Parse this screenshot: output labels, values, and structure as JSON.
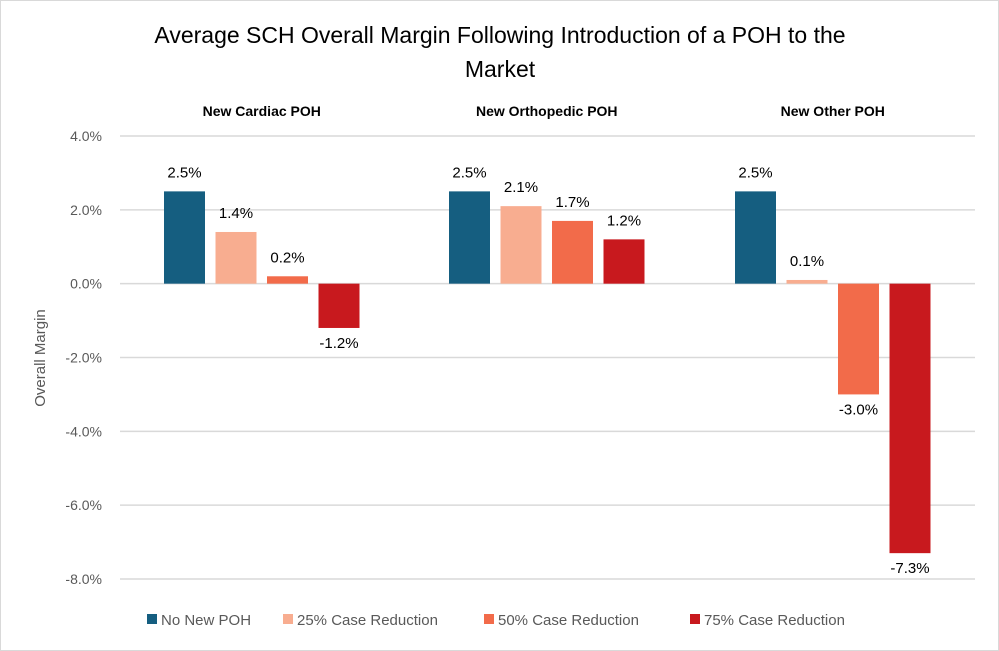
{
  "chart_data": {
    "type": "bar",
    "title": "Average SCH Overall Margin Following Introduction of a POH to the Market",
    "title_lines": [
      "Average SCH Overall Margin Following Introduction of a POH to the",
      "Market"
    ],
    "xlabel": "",
    "ylabel": "Overall Margin",
    "ylim": [
      -8.0,
      4.0
    ],
    "yticks": [
      4.0,
      2.0,
      0.0,
      -2.0,
      -4.0,
      -6.0,
      -8.0
    ],
    "ytick_labels": [
      "4.0%",
      "2.0%",
      "0.0%",
      "-2.0%",
      "-4.0%",
      "-6.0%",
      "-8.0%"
    ],
    "grid": true,
    "legend_position": "bottom",
    "categories": [
      "New Cardiac POH",
      "New Orthopedic POH",
      "New Other POH"
    ],
    "series": [
      {
        "name": "No New POH",
        "color": "#155e80",
        "values": [
          2.5,
          2.5,
          2.5
        ],
        "labels": [
          "2.5%",
          "2.5%",
          "2.5%"
        ]
      },
      {
        "name": "25% Case Reduction",
        "color": "#f8ad90",
        "values": [
          1.4,
          2.1,
          0.1
        ],
        "labels": [
          "1.4%",
          "2.1%",
          "0.1%"
        ]
      },
      {
        "name": "50% Case Reduction",
        "color": "#f26b4a",
        "values": [
          0.2,
          1.7,
          -3.0
        ],
        "labels": [
          "0.2%",
          "1.7%",
          "-3.0%"
        ]
      },
      {
        "name": "75% Case Reduction",
        "color": "#c8191e",
        "values": [
          -1.2,
          1.2,
          -7.3
        ],
        "labels": [
          "-1.2%",
          "1.2%",
          "-7.3%"
        ]
      }
    ]
  }
}
